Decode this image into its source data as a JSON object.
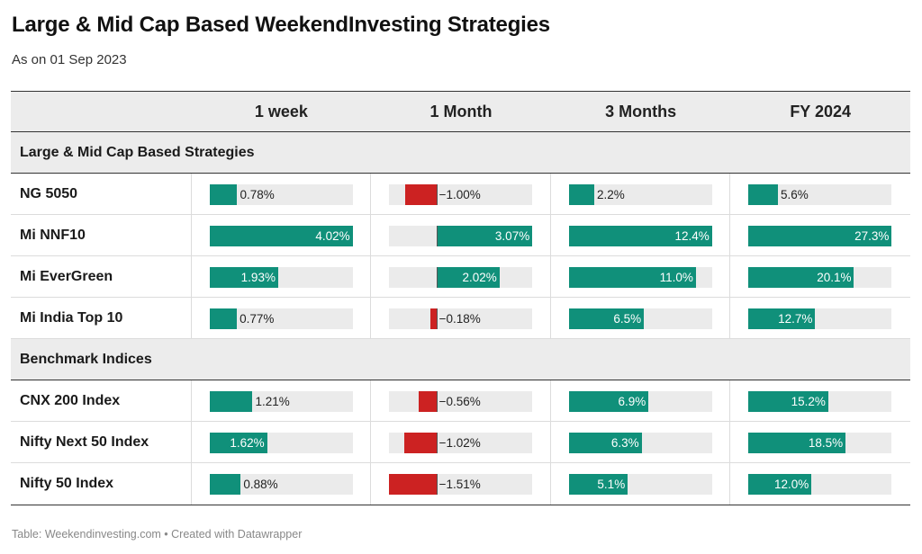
{
  "title": "Large & Mid Cap Based WeekendInvesting Strategies",
  "subtitle": "As on 01 Sep 2023",
  "footer": "Table: Weekendinvesting.com • Created with Datawrapper",
  "colors": {
    "positive": "#10907a",
    "negative": "#cc2222",
    "track": "#ebebeb"
  },
  "chart_data": {
    "type": "table",
    "columns": [
      "1 week",
      "1 Month",
      "3 Months",
      "FY 2024"
    ],
    "column_ranges": [
      [
        0,
        4.02
      ],
      [
        -1.51,
        3.07
      ],
      [
        0,
        12.4
      ],
      [
        0,
        27.3
      ]
    ],
    "groups": [
      {
        "name": "Large & Mid Cap Based Strategies",
        "rows": [
          {
            "name": "NG 5050",
            "values": [
              0.78,
              -1.0,
              2.2,
              5.6
            ],
            "labels": [
              "0.78%",
              "−1.00%",
              "2.2%",
              "5.6%"
            ]
          },
          {
            "name": "Mi NNF10",
            "values": [
              4.02,
              3.07,
              12.4,
              27.3
            ],
            "labels": [
              "4.02%",
              "3.07%",
              "12.4%",
              "27.3%"
            ]
          },
          {
            "name": "Mi EverGreen",
            "values": [
              1.93,
              2.02,
              11.0,
              20.1
            ],
            "labels": [
              "1.93%",
              "2.02%",
              "11.0%",
              "20.1%"
            ]
          },
          {
            "name": "Mi India Top 10",
            "values": [
              0.77,
              -0.18,
              6.5,
              12.7
            ],
            "labels": [
              "0.77%",
              "−0.18%",
              "6.5%",
              "12.7%"
            ]
          }
        ]
      },
      {
        "name": "Benchmark Indices",
        "rows": [
          {
            "name": "CNX 200 Index",
            "values": [
              1.21,
              -0.56,
              6.9,
              15.2
            ],
            "labels": [
              "1.21%",
              "−0.56%",
              "6.9%",
              "15.2%"
            ]
          },
          {
            "name": "Nifty Next 50 Index",
            "values": [
              1.62,
              -1.02,
              6.3,
              18.5
            ],
            "labels": [
              "1.62%",
              "−1.02%",
              "6.3%",
              "18.5%"
            ]
          },
          {
            "name": "Nifty 50 Index",
            "values": [
              0.88,
              -1.51,
              5.1,
              12.0
            ],
            "labels": [
              "0.88%",
              "−1.51%",
              "5.1%",
              "12.0%"
            ]
          }
        ]
      }
    ]
  }
}
